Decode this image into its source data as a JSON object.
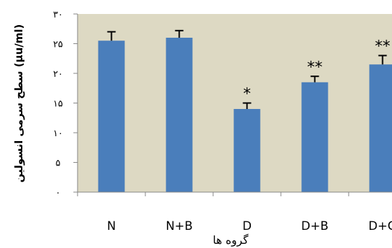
{
  "chart_data": {
    "type": "bar",
    "categories": [
      "N",
      "N+B",
      "D",
      "D+B",
      "D+G"
    ],
    "values": [
      25.5,
      26,
      14,
      18.5,
      21.5
    ],
    "errors": [
      1.5,
      1.2,
      1.0,
      1.0,
      1.5
    ],
    "significance": [
      "",
      "",
      "*",
      "**",
      "**"
    ],
    "ylabel": "سطح سرمی انسولین (μu/ml)",
    "xlabel": "گروه ها",
    "ylim": [
      0,
      30
    ],
    "yticks": [
      0,
      5,
      10,
      15,
      20,
      25,
      30
    ],
    "ytick_labels": [
      "۰",
      "۵",
      "۱۰",
      "۱۵",
      "۲۰",
      "۲۵",
      "۳۰"
    ],
    "grid": false,
    "legend": "none",
    "colors": {
      "bar": "#4A7EBB",
      "plot_bg": "#DDD9C3",
      "axis": "#868686",
      "error": "#000000"
    }
  }
}
